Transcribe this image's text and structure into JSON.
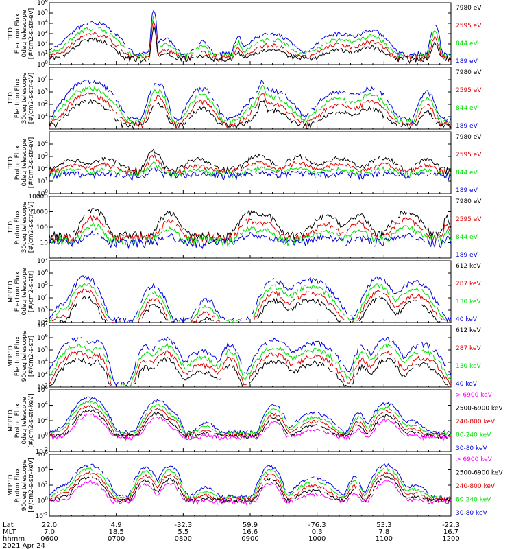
{
  "colors": {
    "black": "#000000",
    "red": "#e00000",
    "green": "#00e000",
    "blue": "#0000e0",
    "magenta": "#ff00ff"
  },
  "chart_data": [
    {
      "type": "line",
      "panel_label": [
        "TED",
        "Electron Flux",
        "0deg telescope",
        "[#/cm2-s-str-eV]"
      ],
      "yscale": "log",
      "ylim": [
        1,
        1000000
      ],
      "ytick_labels": [
        "10^0",
        "10^1",
        "10^2",
        "10^3",
        "10^4",
        "10^5",
        "10^6"
      ],
      "series": [
        {
          "name": "7980 eV",
          "color": "black"
        },
        {
          "name": "2595 eV",
          "color": "red"
        },
        {
          "name": "844 eV",
          "color": "green"
        },
        {
          "name": "189 eV",
          "color": "blue"
        }
      ],
      "series_order": [
        3,
        2,
        1,
        0
      ],
      "baseline": 10,
      "events": [
        [
          0.02,
          0.03,
          50
        ],
        [
          0.11,
          0.05,
          12000
        ],
        [
          0.26,
          0.005,
          200000
        ],
        [
          0.29,
          0.025,
          300
        ],
        [
          0.38,
          0.02,
          200
        ],
        [
          0.47,
          0.01,
          500
        ],
        [
          0.55,
          0.05,
          1000
        ],
        [
          0.72,
          0.05,
          1000
        ],
        [
          0.8,
          0.04,
          2000
        ],
        [
          0.96,
          0.01,
          5000
        ]
      ]
    },
    {
      "type": "line",
      "panel_label": [
        "TED",
        "Electron Flux",
        "30deg telescope",
        "[#/cm2-s-str-eV]"
      ],
      "yscale": "log",
      "ylim": [
        1,
        100000
      ],
      "ytick_labels": [
        "10^1",
        "10^2",
        "10^3",
        "10^4"
      ],
      "ytick_values": [
        10,
        100,
        1000,
        10000
      ],
      "series": [
        {
          "name": "7980 eV",
          "color": "black"
        },
        {
          "name": "2595 eV",
          "color": "red"
        },
        {
          "name": "844 eV",
          "color": "green"
        },
        {
          "name": "189 eV",
          "color": "blue"
        }
      ],
      "series_order": [
        3,
        2,
        1,
        0
      ],
      "baseline": 5,
      "events": [
        [
          0.1,
          0.05,
          8000
        ],
        [
          0.27,
          0.02,
          5000
        ],
        [
          0.38,
          0.03,
          2000
        ],
        [
          0.53,
          0.01,
          8000
        ],
        [
          0.55,
          0.05,
          1500
        ],
        [
          0.72,
          0.05,
          1000
        ],
        [
          0.8,
          0.04,
          2000
        ],
        [
          0.94,
          0.02,
          1000
        ]
      ]
    },
    {
      "type": "line",
      "panel_label": [
        "TED",
        "Proton Flux",
        "0deg telescope",
        "[#/cm2-s-str-eV]"
      ],
      "yscale": "log",
      "ylim": [
        1,
        100000
      ],
      "ytick_labels": [
        "10^0",
        "10^1",
        "10^2",
        "10^3",
        "10^4"
      ],
      "ytick_values": [
        1,
        10,
        100,
        1000,
        10000
      ],
      "series": [
        {
          "name": "7980 eV",
          "color": "black"
        },
        {
          "name": "2595 eV",
          "color": "red"
        },
        {
          "name": "844 eV",
          "color": "green"
        },
        {
          "name": "189 eV",
          "color": "blue"
        }
      ],
      "series_order": [
        0,
        1,
        2,
        3
      ],
      "baseline": 80,
      "events": [
        [
          0.06,
          0.04,
          500
        ],
        [
          0.14,
          0.04,
          600
        ],
        [
          0.26,
          0.02,
          3000
        ],
        [
          0.37,
          0.04,
          500
        ],
        [
          0.52,
          0.04,
          1000
        ],
        [
          0.62,
          0.04,
          1000
        ],
        [
          0.72,
          0.05,
          600
        ],
        [
          0.83,
          0.04,
          700
        ],
        [
          0.94,
          0.03,
          500
        ]
      ]
    },
    {
      "type": "line",
      "panel_label": [
        "TED",
        "Proton Flux",
        "30deg telescope",
        "[#/cm2-s-str-eV]"
      ],
      "yscale": "log",
      "ylim": [
        1,
        10000
      ],
      "ytick_labels": [
        "10",
        "100",
        "1000",
        "10000"
      ],
      "ytick_values": [
        10,
        100,
        1000,
        10000
      ],
      "series": [
        {
          "name": "7980 eV",
          "color": "black"
        },
        {
          "name": "2595 eV",
          "color": "red"
        },
        {
          "name": "844 eV",
          "color": "green"
        },
        {
          "name": "189 eV",
          "color": "blue"
        }
      ],
      "series_order": [
        0,
        1,
        2,
        3
      ],
      "baseline": 30,
      "events": [
        [
          0.11,
          0.03,
          1500
        ],
        [
          0.3,
          0.03,
          800
        ],
        [
          0.5,
          0.03,
          900
        ],
        [
          0.54,
          0.03,
          600
        ],
        [
          0.69,
          0.04,
          500
        ],
        [
          0.77,
          0.03,
          600
        ],
        [
          0.89,
          0.04,
          1000
        ],
        [
          0.99,
          0.01,
          500
        ]
      ]
    },
    {
      "type": "line",
      "panel_label": [
        "MEPED",
        "Electron Flux",
        "0deg telescope",
        "[#/cm2-s-str]"
      ],
      "yscale": "log",
      "ylim": [
        100,
        10000000
      ],
      "ytick_labels": [
        "10^2",
        "10^3",
        "10^4",
        "10^5",
        "10^6",
        "10^7"
      ],
      "series": [
        {
          "name": "612 keV",
          "color": "black"
        },
        {
          "name": "287 keV",
          "color": "red"
        },
        {
          "name": "130 keV",
          "color": "green"
        },
        {
          "name": "40 keV",
          "color": "blue"
        }
      ],
      "series_order": [
        3,
        2,
        1,
        0
      ],
      "baseline": 150,
      "events": [
        [
          0.03,
          0.02,
          3000
        ],
        [
          0.09,
          0.03,
          500000
        ],
        [
          0.26,
          0.025,
          100000
        ],
        [
          0.39,
          0.025,
          8000
        ],
        [
          0.56,
          0.03,
          300000
        ],
        [
          0.65,
          0.05,
          300000
        ],
        [
          0.82,
          0.03,
          400000
        ],
        [
          0.91,
          0.04,
          200000
        ]
      ]
    },
    {
      "type": "line",
      "panel_label": [
        "MEPED",
        "Electron Flux",
        "90deg telescope",
        "[#/cm2-s-str]"
      ],
      "yscale": "log",
      "ylim": [
        100,
        10000000
      ],
      "ytick_labels": [
        "10^2",
        "10^3",
        "10^4",
        "10^5",
        "10^6",
        "10^7"
      ],
      "series": [
        {
          "name": "612 keV",
          "color": "black"
        },
        {
          "name": "287 keV",
          "color": "red"
        },
        {
          "name": "130 keV",
          "color": "green"
        },
        {
          "name": "40 keV",
          "color": "blue"
        }
      ],
      "series_order": [
        3,
        2,
        1,
        0
      ],
      "baseline": 150,
      "events": [
        [
          0.07,
          0.04,
          800000
        ],
        [
          0.12,
          0.02,
          500000
        ],
        [
          0.24,
          0.02,
          200000
        ],
        [
          0.29,
          0.03,
          800000
        ],
        [
          0.38,
          0.04,
          80000
        ],
        [
          0.45,
          0.02,
          300000
        ],
        [
          0.56,
          0.04,
          600000
        ],
        [
          0.66,
          0.05,
          400000
        ],
        [
          0.78,
          0.02,
          200000
        ],
        [
          0.84,
          0.03,
          800000
        ],
        [
          0.93,
          0.04,
          300000
        ]
      ]
    },
    {
      "type": "line",
      "panel_label": [
        "MEPED",
        "Proton Flux",
        "0deg telescope",
        "[#/cm2-s-str-keV]"
      ],
      "yscale": "log",
      "ylim": [
        0.01,
        1000000
      ],
      "ytick_labels": [
        "10^-2",
        "10^0",
        "10^2",
        "10^4",
        "10^6"
      ],
      "ytick_values": [
        0.01,
        1,
        100,
        10000,
        1000000
      ],
      "series": [
        {
          "name": "> 6900 keV",
          "color": "magenta"
        },
        {
          "name": "2500-6900 keV",
          "color": "black"
        },
        {
          "name": "240-800 keV",
          "color": "red"
        },
        {
          "name": "80-240 keV",
          "color": "green"
        },
        {
          "name": "30-80 keV",
          "color": "blue"
        }
      ],
      "series_order": [
        4,
        3,
        2,
        1,
        0
      ],
      "baseline": 3,
      "events": [
        [
          0.03,
          0.02,
          10
        ],
        [
          0.1,
          0.03,
          100000
        ],
        [
          0.27,
          0.025,
          40000
        ],
        [
          0.31,
          0.015,
          1000
        ],
        [
          0.39,
          0.025,
          50
        ],
        [
          0.56,
          0.02,
          10000
        ],
        [
          0.66,
          0.04,
          1000
        ],
        [
          0.77,
          0.015,
          1000
        ],
        [
          0.84,
          0.025,
          20000
        ],
        [
          0.9,
          0.03,
          100
        ]
      ]
    },
    {
      "type": "line",
      "panel_label": [
        "MEPED",
        "Proton Flux",
        "90deg telescope",
        "[#/cm2-s-str-keV]"
      ],
      "yscale": "log",
      "ylim": [
        0.01,
        1000000
      ],
      "ytick_labels": [
        "10^-2",
        "10^0",
        "10^2",
        "10^4",
        "10^6"
      ],
      "ytick_values": [
        0.01,
        1,
        100,
        10000,
        1000000
      ],
      "series": [
        {
          "name": "> 6900 keV",
          "color": "magenta"
        },
        {
          "name": "2500-6900 keV",
          "color": "black"
        },
        {
          "name": "240-800 keV",
          "color": "red"
        },
        {
          "name": "80-240 keV",
          "color": "green"
        },
        {
          "name": "30-80 keV",
          "color": "blue"
        }
      ],
      "series_order": [
        4,
        3,
        2,
        1,
        0
      ],
      "baseline": 3,
      "events": [
        [
          0.04,
          0.03,
          100
        ],
        [
          0.1,
          0.03,
          50000
        ],
        [
          0.24,
          0.02,
          20000
        ],
        [
          0.3,
          0.02,
          30000
        ],
        [
          0.39,
          0.025,
          50
        ],
        [
          0.55,
          0.02,
          30000
        ],
        [
          0.66,
          0.04,
          1000
        ],
        [
          0.76,
          0.015,
          1000
        ],
        [
          0.84,
          0.025,
          50000
        ],
        [
          0.91,
          0.03,
          100
        ]
      ]
    }
  ],
  "xaxis": {
    "row_labels": [
      "Lat",
      "MLT",
      "hhmm",
      "2021 Apr 24"
    ],
    "ticks": [
      {
        "lat": "22.0",
        "mlt": "7.0",
        "hhmm": "0600"
      },
      {
        "lat": "4.9",
        "mlt": "18.5",
        "hhmm": "0700"
      },
      {
        "lat": "-32.3",
        "mlt": "5.5",
        "hhmm": "0800"
      },
      {
        "lat": "59.9",
        "mlt": "16.6",
        "hhmm": "0900"
      },
      {
        "lat": "-76.3",
        "mlt": "0.3",
        "hhmm": "1000"
      },
      {
        "lat": "53.3",
        "mlt": "7.8",
        "hhmm": "1100"
      },
      {
        "lat": "-22.3",
        "mlt": "16.7",
        "hhmm": "1200"
      }
    ]
  }
}
